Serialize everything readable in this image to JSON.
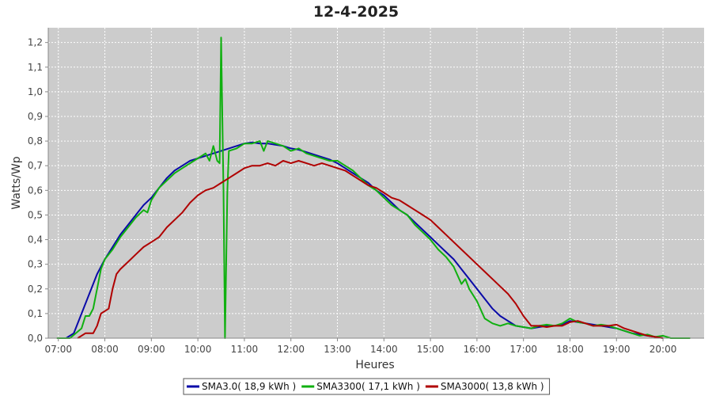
{
  "chart_data": {
    "type": "line",
    "title": "12-4-2025",
    "xlabel": "Heures",
    "ylabel": "Watts/Wp",
    "x_ticks": [
      "07:00",
      "08:00",
      "09:00",
      "10:00",
      "11:00",
      "12:00",
      "13:00",
      "14:00",
      "15:00",
      "16:00",
      "17:00",
      "18:00",
      "19:00",
      "20:00"
    ],
    "y_ticks": [
      "0,0",
      "0,1",
      "0,2",
      "0,3",
      "0,4",
      "0,5",
      "0,6",
      "0,7",
      "0,8",
      "0,9",
      "1,0",
      "1,1",
      "1,2"
    ],
    "xlim": [
      "06:47",
      "20:53"
    ],
    "ylim": [
      0,
      1.26
    ],
    "grid": true,
    "legend_position": "bottom",
    "series": [
      {
        "name": "SMA3.0( 18,9 kWh )",
        "color": "#0a0aa8",
        "points": [
          [
            "07:10",
            0.0
          ],
          [
            "07:20",
            0.02
          ],
          [
            "07:30",
            0.1
          ],
          [
            "07:40",
            0.18
          ],
          [
            "07:50",
            0.26
          ],
          [
            "08:00",
            0.32
          ],
          [
            "08:10",
            0.37
          ],
          [
            "08:20",
            0.42
          ],
          [
            "08:30",
            0.46
          ],
          [
            "08:40",
            0.5
          ],
          [
            "08:50",
            0.54
          ],
          [
            "09:00",
            0.57
          ],
          [
            "09:10",
            0.61
          ],
          [
            "09:20",
            0.65
          ],
          [
            "09:30",
            0.68
          ],
          [
            "09:40",
            0.7
          ],
          [
            "09:50",
            0.72
          ],
          [
            "10:00",
            0.73
          ],
          [
            "10:10",
            0.74
          ],
          [
            "10:20",
            0.75
          ],
          [
            "10:30",
            0.76
          ],
          [
            "10:40",
            0.77
          ],
          [
            "10:50",
            0.78
          ],
          [
            "11:00",
            0.79
          ],
          [
            "11:10",
            0.795
          ],
          [
            "11:20",
            0.79
          ],
          [
            "11:30",
            0.79
          ],
          [
            "11:40",
            0.785
          ],
          [
            "11:50",
            0.78
          ],
          [
            "12:00",
            0.77
          ],
          [
            "12:10",
            0.765
          ],
          [
            "12:20",
            0.755
          ],
          [
            "12:30",
            0.745
          ],
          [
            "12:40",
            0.735
          ],
          [
            "12:50",
            0.725
          ],
          [
            "13:00",
            0.71
          ],
          [
            "13:10",
            0.69
          ],
          [
            "13:20",
            0.67
          ],
          [
            "13:30",
            0.65
          ],
          [
            "13:40",
            0.63
          ],
          [
            "13:50",
            0.6
          ],
          [
            "14:00",
            0.58
          ],
          [
            "14:10",
            0.55
          ],
          [
            "14:20",
            0.52
          ],
          [
            "14:30",
            0.5
          ],
          [
            "14:40",
            0.47
          ],
          [
            "14:50",
            0.44
          ],
          [
            "15:00",
            0.41
          ],
          [
            "15:10",
            0.38
          ],
          [
            "15:20",
            0.35
          ],
          [
            "15:30",
            0.32
          ],
          [
            "15:40",
            0.28
          ],
          [
            "15:50",
            0.24
          ],
          [
            "16:00",
            0.2
          ],
          [
            "16:10",
            0.16
          ],
          [
            "16:20",
            0.12
          ],
          [
            "16:30",
            0.09
          ],
          [
            "16:40",
            0.07
          ],
          [
            "16:50",
            0.05
          ],
          [
            "17:00",
            0.045
          ],
          [
            "17:10",
            0.04
          ],
          [
            "17:20",
            0.045
          ],
          [
            "17:30",
            0.05
          ],
          [
            "17:40",
            0.05
          ],
          [
            "17:50",
            0.055
          ],
          [
            "18:00",
            0.07
          ],
          [
            "18:10",
            0.065
          ],
          [
            "18:20",
            0.06
          ],
          [
            "18:30",
            0.055
          ],
          [
            "18:40",
            0.05
          ],
          [
            "18:50",
            0.045
          ],
          [
            "19:00",
            0.04
          ],
          [
            "19:10",
            0.03
          ],
          [
            "19:20",
            0.02
          ],
          [
            "19:30",
            0.015
          ],
          [
            "19:40",
            0.01
          ],
          [
            "19:50",
            0.005
          ],
          [
            "20:00",
            0.0
          ]
        ]
      },
      {
        "name": "SMA3300( 17,1 kWh )",
        "color": "#10b010",
        "points": [
          [
            "06:58",
            0.0
          ],
          [
            "07:15",
            0.0
          ],
          [
            "07:30",
            0.04
          ],
          [
            "07:35",
            0.09
          ],
          [
            "07:40",
            0.09
          ],
          [
            "07:45",
            0.12
          ],
          [
            "07:50",
            0.2
          ],
          [
            "07:55",
            0.28
          ],
          [
            "08:00",
            0.32
          ],
          [
            "08:10",
            0.36
          ],
          [
            "08:20",
            0.41
          ],
          [
            "08:30",
            0.45
          ],
          [
            "08:40",
            0.49
          ],
          [
            "08:50",
            0.52
          ],
          [
            "08:55",
            0.51
          ],
          [
            "09:00",
            0.56
          ],
          [
            "09:10",
            0.61
          ],
          [
            "09:20",
            0.64
          ],
          [
            "09:30",
            0.67
          ],
          [
            "09:40",
            0.69
          ],
          [
            "09:50",
            0.71
          ],
          [
            "10:00",
            0.73
          ],
          [
            "10:05",
            0.74
          ],
          [
            "10:10",
            0.75
          ],
          [
            "10:15",
            0.72
          ],
          [
            "10:20",
            0.78
          ],
          [
            "10:25",
            0.72
          ],
          [
            "10:28",
            0.71
          ],
          [
            "10:30",
            1.22
          ],
          [
            "10:33",
            0.6
          ],
          [
            "10:35",
            0.0
          ],
          [
            "10:38",
            0.6
          ],
          [
            "10:40",
            0.76
          ],
          [
            "10:50",
            0.77
          ],
          [
            "11:00",
            0.79
          ],
          [
            "11:10",
            0.79
          ],
          [
            "11:20",
            0.8
          ],
          [
            "11:25",
            0.76
          ],
          [
            "11:30",
            0.8
          ],
          [
            "11:40",
            0.79
          ],
          [
            "11:50",
            0.78
          ],
          [
            "12:00",
            0.76
          ],
          [
            "12:10",
            0.77
          ],
          [
            "12:20",
            0.75
          ],
          [
            "12:30",
            0.74
          ],
          [
            "12:40",
            0.73
          ],
          [
            "12:50",
            0.72
          ],
          [
            "13:00",
            0.72
          ],
          [
            "13:10",
            0.7
          ],
          [
            "13:20",
            0.68
          ],
          [
            "13:30",
            0.65
          ],
          [
            "13:40",
            0.62
          ],
          [
            "13:50",
            0.6
          ],
          [
            "14:00",
            0.57
          ],
          [
            "14:10",
            0.54
          ],
          [
            "14:20",
            0.52
          ],
          [
            "14:30",
            0.5
          ],
          [
            "14:40",
            0.46
          ],
          [
            "14:50",
            0.43
          ],
          [
            "15:00",
            0.4
          ],
          [
            "15:10",
            0.36
          ],
          [
            "15:20",
            0.33
          ],
          [
            "15:30",
            0.29
          ],
          [
            "15:40",
            0.22
          ],
          [
            "15:45",
            0.24
          ],
          [
            "15:50",
            0.2
          ],
          [
            "16:00",
            0.15
          ],
          [
            "16:10",
            0.08
          ],
          [
            "16:20",
            0.06
          ],
          [
            "16:30",
            0.05
          ],
          [
            "16:40",
            0.06
          ],
          [
            "16:50",
            0.05
          ],
          [
            "17:00",
            0.045
          ],
          [
            "17:10",
            0.04
          ],
          [
            "17:20",
            0.05
          ],
          [
            "17:30",
            0.055
          ],
          [
            "17:40",
            0.05
          ],
          [
            "17:50",
            0.06
          ],
          [
            "18:00",
            0.08
          ],
          [
            "18:10",
            0.065
          ],
          [
            "18:20",
            0.06
          ],
          [
            "18:30",
            0.05
          ],
          [
            "18:40",
            0.055
          ],
          [
            "18:50",
            0.05
          ],
          [
            "19:00",
            0.04
          ],
          [
            "19:10",
            0.03
          ],
          [
            "19:20",
            0.02
          ],
          [
            "19:30",
            0.01
          ],
          [
            "19:40",
            0.015
          ],
          [
            "19:50",
            0.005
          ],
          [
            "20:00",
            0.01
          ],
          [
            "20:10",
            0.0
          ],
          [
            "20:35",
            0.0
          ]
        ]
      },
      {
        "name": "SMA3000( 13,8 kWh )",
        "color": "#b00000",
        "points": [
          [
            "07:25",
            0.0
          ],
          [
            "07:35",
            0.02
          ],
          [
            "07:45",
            0.02
          ],
          [
            "07:50",
            0.05
          ],
          [
            "07:55",
            0.1
          ],
          [
            "08:00",
            0.11
          ],
          [
            "08:05",
            0.12
          ],
          [
            "08:10",
            0.2
          ],
          [
            "08:15",
            0.26
          ],
          [
            "08:20",
            0.28
          ],
          [
            "08:30",
            0.31
          ],
          [
            "08:40",
            0.34
          ],
          [
            "08:50",
            0.37
          ],
          [
            "09:00",
            0.39
          ],
          [
            "09:10",
            0.41
          ],
          [
            "09:20",
            0.45
          ],
          [
            "09:30",
            0.48
          ],
          [
            "09:40",
            0.51
          ],
          [
            "09:50",
            0.55
          ],
          [
            "10:00",
            0.58
          ],
          [
            "10:10",
            0.6
          ],
          [
            "10:20",
            0.61
          ],
          [
            "10:30",
            0.63
          ],
          [
            "10:40",
            0.65
          ],
          [
            "10:50",
            0.67
          ],
          [
            "11:00",
            0.69
          ],
          [
            "11:10",
            0.7
          ],
          [
            "11:20",
            0.7
          ],
          [
            "11:30",
            0.71
          ],
          [
            "11:40",
            0.7
          ],
          [
            "11:50",
            0.72
          ],
          [
            "12:00",
            0.71
          ],
          [
            "12:10",
            0.72
          ],
          [
            "12:20",
            0.71
          ],
          [
            "12:30",
            0.7
          ],
          [
            "12:40",
            0.71
          ],
          [
            "12:50",
            0.7
          ],
          [
            "13:00",
            0.69
          ],
          [
            "13:10",
            0.68
          ],
          [
            "13:20",
            0.66
          ],
          [
            "13:30",
            0.64
          ],
          [
            "13:40",
            0.62
          ],
          [
            "13:50",
            0.61
          ],
          [
            "14:00",
            0.59
          ],
          [
            "14:10",
            0.57
          ],
          [
            "14:20",
            0.56
          ],
          [
            "14:30",
            0.54
          ],
          [
            "14:40",
            0.52
          ],
          [
            "14:50",
            0.5
          ],
          [
            "15:00",
            0.48
          ],
          [
            "15:10",
            0.45
          ],
          [
            "15:20",
            0.42
          ],
          [
            "15:30",
            0.39
          ],
          [
            "15:40",
            0.36
          ],
          [
            "15:50",
            0.33
          ],
          [
            "16:00",
            0.3
          ],
          [
            "16:10",
            0.27
          ],
          [
            "16:20",
            0.24
          ],
          [
            "16:30",
            0.21
          ],
          [
            "16:40",
            0.18
          ],
          [
            "16:50",
            0.14
          ],
          [
            "17:00",
            0.09
          ],
          [
            "17:10",
            0.05
          ],
          [
            "17:20",
            0.05
          ],
          [
            "17:30",
            0.045
          ],
          [
            "17:40",
            0.05
          ],
          [
            "17:50",
            0.05
          ],
          [
            "18:00",
            0.065
          ],
          [
            "18:10",
            0.07
          ],
          [
            "18:20",
            0.06
          ],
          [
            "18:30",
            0.05
          ],
          [
            "18:40",
            0.05
          ],
          [
            "18:50",
            0.05
          ],
          [
            "19:00",
            0.055
          ],
          [
            "19:10",
            0.04
          ],
          [
            "19:20",
            0.03
          ],
          [
            "19:30",
            0.02
          ],
          [
            "19:40",
            0.01
          ],
          [
            "19:50",
            0.005
          ],
          [
            "20:00",
            0.0
          ]
        ]
      }
    ]
  }
}
